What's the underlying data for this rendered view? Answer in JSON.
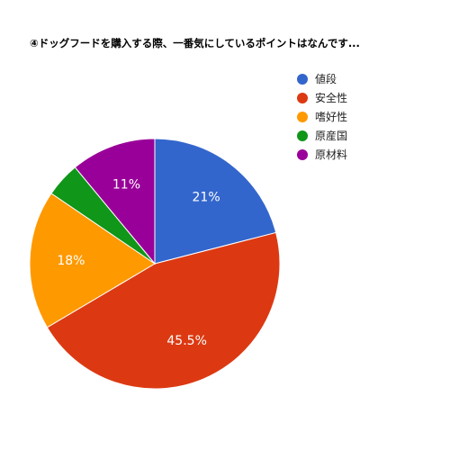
{
  "chart_data": {
    "type": "pie",
    "title": "④ドッグフードを購入する際、一番気にしているポイントはなんです...",
    "categories": [
      "値段",
      "安全性",
      "嗜好性",
      "原産国",
      "原材料"
    ],
    "values": [
      21,
      45.5,
      18,
      4.5,
      11
    ],
    "labels": [
      "21%",
      "45.5%",
      "18%",
      "",
      "11%"
    ],
    "colors": [
      "#3366cc",
      "#dc3912",
      "#ff9900",
      "#109618",
      "#990099"
    ],
    "legend_position": "right",
    "start_angle_deg": 0,
    "direction": "clockwise"
  }
}
